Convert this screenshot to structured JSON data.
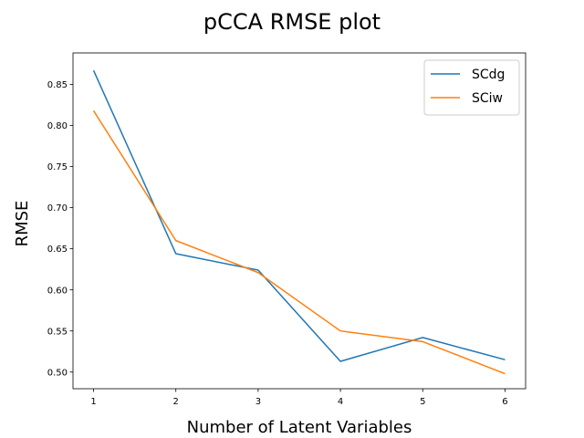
{
  "chart_data": {
    "type": "line",
    "title": "pCCA RMSE plot",
    "xlabel": "Number of Latent Variables",
    "ylabel": "RMSE",
    "x": [
      1,
      2,
      3,
      4,
      5,
      6
    ],
    "xlim": [
      0.75,
      6.25
    ],
    "ylim": [
      0.4797,
      0.8883
    ],
    "yticks": [
      0.5,
      0.55,
      0.6,
      0.65,
      0.7,
      0.75,
      0.8,
      0.85
    ],
    "ytick_labels": [
      "0.50",
      "0.55",
      "0.60",
      "0.65",
      "0.70",
      "0.75",
      "0.80",
      "0.85"
    ],
    "xticks": [
      1,
      2,
      3,
      4,
      5,
      6
    ],
    "xtick_labels": [
      "1",
      "2",
      "3",
      "4",
      "5",
      "6"
    ],
    "grid": false,
    "legend_position": "top-right",
    "series": [
      {
        "name": "SCdg",
        "color": "#1f77b4",
        "values": [
          0.867,
          0.644,
          0.624,
          0.513,
          0.542,
          0.515
        ]
      },
      {
        "name": "SCiw",
        "color": "#ff7f0e",
        "values": [
          0.818,
          0.66,
          0.621,
          0.55,
          0.537,
          0.498
        ]
      }
    ]
  }
}
